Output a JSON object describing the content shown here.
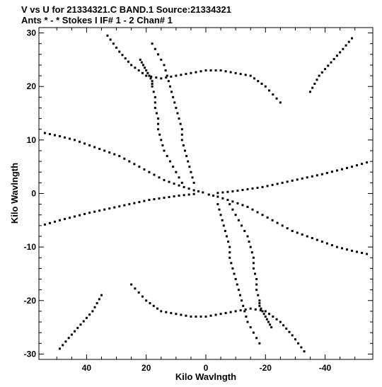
{
  "chart_data": {
    "type": "scatter",
    "title_line1": "V vs U for 21334321.C BAND.1   Source:21334321",
    "title_line2": "Ants * - *    Stokes I  IF# 1 - 2  Chan# 1",
    "xlabel": "Kilo Wavlngth",
    "ylabel": "Kilo Wavlngth",
    "xlim": [
      56,
      -56
    ],
    "ylim": [
      -31,
      31
    ],
    "x_inverted": true,
    "xticks": [
      40,
      20,
      0,
      -20,
      -40
    ],
    "yticks": [
      30,
      20,
      10,
      0,
      -10,
      -20,
      -30
    ],
    "grid": false,
    "legend": "none",
    "marker_color": "#000000",
    "tracks": [
      {
        "u": [
          33,
          29,
          25,
          20,
          15,
          10,
          5,
          0,
          -5,
          -10,
          -15,
          -20,
          -25
        ],
        "v": [
          29.5,
          26.5,
          24,
          22,
          21.5,
          22,
          22.5,
          23,
          23,
          22.5,
          22,
          20,
          17
        ]
      },
      {
        "u": [
          -33,
          -29,
          -25,
          -20,
          -15,
          -10,
          -5,
          0,
          5,
          10,
          15,
          20,
          25
        ],
        "v": [
          -29.5,
          -26.5,
          -24,
          -22,
          -21.5,
          -22,
          -22.5,
          -23,
          -23,
          -22.5,
          -22,
          -20,
          -17
        ]
      },
      {
        "u": [
          -35,
          -38,
          -42,
          -46,
          -49
        ],
        "v": [
          19,
          22,
          24.5,
          27,
          29
        ]
      },
      {
        "u": [
          35,
          38,
          42,
          46,
          49
        ],
        "v": [
          -19,
          -22,
          -24.5,
          -27,
          -29
        ]
      },
      {
        "u": [
          54,
          49,
          44,
          39,
          34,
          29,
          24,
          19,
          14,
          9,
          4,
          1
        ],
        "v": [
          11.3,
          10.7,
          10,
          9,
          8,
          7,
          5.5,
          4,
          2.5,
          1.5,
          0.6,
          0.2
        ]
      },
      {
        "u": [
          -54,
          -49,
          -44,
          -39,
          -34,
          -29,
          -24,
          -19,
          -14,
          -9,
          -4,
          -1
        ],
        "v": [
          -11.3,
          -10.7,
          -10,
          -9,
          -8,
          -7,
          -5.5,
          -4,
          -2.5,
          -1.5,
          -0.6,
          -0.2
        ]
      },
      {
        "u": [
          54,
          49,
          44,
          39,
          34,
          29,
          24,
          19,
          14,
          9,
          4
        ],
        "v": [
          -5.8,
          -5,
          -4.3,
          -3.6,
          -3,
          -2.4,
          -1.8,
          -1.2,
          -0.8,
          -0.4,
          -0.1
        ]
      },
      {
        "u": [
          -54,
          -49,
          -44,
          -39,
          -34,
          -29,
          -24,
          -19,
          -14,
          -9,
          -4
        ],
        "v": [
          5.8,
          5,
          4.3,
          3.6,
          3,
          2.4,
          1.8,
          1.2,
          0.8,
          0.4,
          0.1
        ]
      },
      {
        "u": [
          -8,
          -10,
          -12,
          -14,
          -15,
          -16,
          -16,
          -17,
          -17,
          -18,
          -18,
          -19,
          -20,
          -21,
          -22
        ],
        "v": [
          -2,
          -4,
          -6,
          -8,
          -10,
          -12,
          -14,
          -16,
          -18,
          -20,
          -21,
          -22,
          -23,
          -24,
          -25
        ]
      },
      {
        "u": [
          8,
          10,
          12,
          14,
          15,
          16,
          16,
          17,
          17,
          18,
          18,
          19,
          20,
          21,
          22
        ],
        "v": [
          2,
          4,
          6,
          8,
          10,
          12,
          14,
          16,
          18,
          20,
          21,
          22,
          23,
          24,
          25
        ]
      },
      {
        "u": [
          4,
          5,
          6,
          7,
          8,
          8,
          9,
          10,
          11,
          12,
          13,
          14,
          16,
          18
        ],
        "v": [
          2,
          4,
          6,
          8,
          10,
          12,
          14,
          16,
          18,
          20,
          22,
          24,
          26,
          28
        ]
      },
      {
        "u": [
          -4,
          -5,
          -6,
          -7,
          -8,
          -8,
          -9,
          -10,
          -11,
          -12,
          -13,
          -14,
          -16,
          -18
        ],
        "v": [
          -2,
          -4,
          -6,
          -8,
          -10,
          -12,
          -14,
          -16,
          -18,
          -20,
          -22,
          -24,
          -26,
          -28
        ]
      }
    ]
  }
}
